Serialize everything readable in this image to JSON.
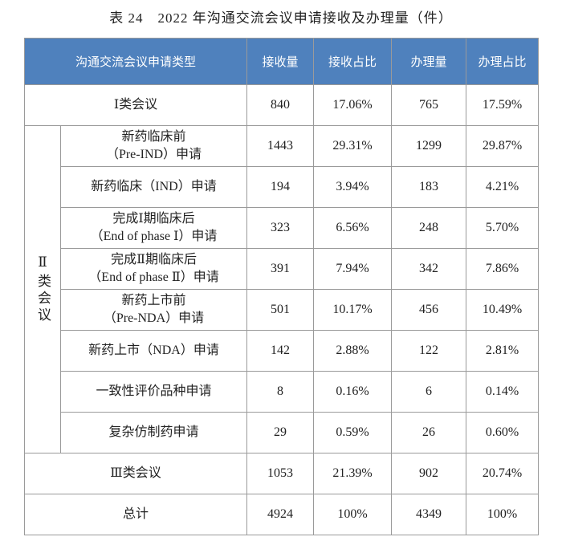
{
  "title": "表 24　2022 年沟通交流会议申请接收及办理量（件）",
  "table": {
    "header": [
      "沟通交流会议申请类型",
      "接收量",
      "接收占比",
      "办理量",
      "办理占比"
    ],
    "top_rows": [
      {
        "label": [
          "Ⅰ类会议"
        ],
        "cells": [
          "840",
          "17.06%",
          "765",
          "17.59%"
        ]
      }
    ],
    "group": {
      "label": "Ⅱ类会议",
      "rows": [
        {
          "label": [
            "新药临床前",
            "（Pre-IND）申请"
          ],
          "cells": [
            "1443",
            "29.31%",
            "1299",
            "29.87%"
          ]
        },
        {
          "label": [
            "新药临床（IND）申请"
          ],
          "cells": [
            "194",
            "3.94%",
            "183",
            "4.21%"
          ]
        },
        {
          "label": [
            "完成Ⅰ期临床后",
            "（End of phase Ⅰ）申请"
          ],
          "cells": [
            "323",
            "6.56%",
            "248",
            "5.70%"
          ]
        },
        {
          "label": [
            "完成Ⅱ期临床后",
            "（End of phase Ⅱ）申请"
          ],
          "cells": [
            "391",
            "7.94%",
            "342",
            "7.86%"
          ]
        },
        {
          "label": [
            "新药上市前",
            "（Pre-NDA）申请"
          ],
          "cells": [
            "501",
            "10.17%",
            "456",
            "10.49%"
          ]
        },
        {
          "label": [
            "新药上市（NDA）申请"
          ],
          "cells": [
            "142",
            "2.88%",
            "122",
            "2.81%"
          ]
        },
        {
          "label": [
            "一致性评价品种申请"
          ],
          "cells": [
            "8",
            "0.16%",
            "6",
            "0.14%"
          ]
        },
        {
          "label": [
            "复杂仿制药申请"
          ],
          "cells": [
            "29",
            "0.59%",
            "26",
            "0.60%"
          ]
        }
      ]
    },
    "bottom_rows": [
      {
        "label": [
          "Ⅲ类会议"
        ],
        "cells": [
          "1053",
          "21.39%",
          "902",
          "20.74%"
        ]
      },
      {
        "label": [
          "总计"
        ],
        "cells": [
          "4924",
          "100%",
          "4349",
          "100%"
        ]
      }
    ]
  }
}
